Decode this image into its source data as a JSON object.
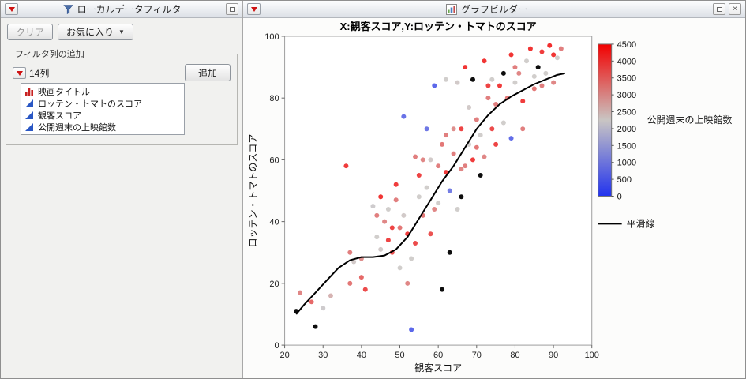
{
  "icons": {
    "close": "×",
    "caret_down": "▼"
  },
  "filter_panel": {
    "title": "ローカルデータフィルタ",
    "clear_label": "クリア",
    "favorites_label": "お気に入り",
    "group_label": "フィルタ列の追加",
    "columns_label": "14列",
    "add_label": "追加",
    "columns": [
      {
        "name": "映画タイトル",
        "icon": "bar-chart-icon",
        "type": "nominal"
      },
      {
        "name": "ロッテン・トマトのスコア",
        "icon": "continuous-icon",
        "type": "continuous"
      },
      {
        "name": "観客スコア",
        "icon": "continuous-icon",
        "type": "continuous"
      },
      {
        "name": "公開週末の上映館数",
        "icon": "continuous-icon",
        "type": "continuous"
      }
    ]
  },
  "graph_panel": {
    "title": "グラフビルダー"
  },
  "chart_data": {
    "type": "scatter",
    "title": "X:観客スコア,Y:ロッテン・トマトのスコア",
    "xlabel": "観客スコア",
    "ylabel": "ロッテン・トマトのスコア",
    "xlim": [
      20,
      100
    ],
    "ylim": [
      0,
      100
    ],
    "x_ticks": [
      20,
      30,
      40,
      50,
      60,
      70,
      80,
      90,
      100
    ],
    "y_ticks": [
      0,
      20,
      40,
      60,
      80,
      100
    ],
    "grid": false,
    "color_legend": {
      "title": "公開週末の上映館数",
      "min": 0,
      "max": 4500,
      "ticks": [
        4500,
        4000,
        3500,
        3000,
        2500,
        2000,
        1500,
        1000,
        500,
        0
      ],
      "low_color": "#2233ee",
      "mid_color": "#c9c5c3",
      "high_color": "#f20000"
    },
    "smoother": {
      "label": "平滑線",
      "color": "#000000",
      "points": [
        [
          23,
          10
        ],
        [
          25,
          13
        ],
        [
          28,
          17
        ],
        [
          31,
          21
        ],
        [
          34,
          25
        ],
        [
          37,
          27.5
        ],
        [
          40,
          28.5
        ],
        [
          43,
          28.5
        ],
        [
          46,
          29
        ],
        [
          49,
          31
        ],
        [
          52,
          35
        ],
        [
          55,
          41
        ],
        [
          58,
          47
        ],
        [
          61,
          53
        ],
        [
          64,
          58
        ],
        [
          67,
          64
        ],
        [
          70,
          70
        ],
        [
          73,
          74.5
        ],
        [
          76,
          78
        ],
        [
          79,
          80.5
        ],
        [
          82,
          82.5
        ],
        [
          85,
          84.5
        ],
        [
          88,
          86
        ],
        [
          91,
          87.5
        ],
        [
          93,
          88
        ]
      ]
    },
    "points": [
      [
        23,
        11,
        null
      ],
      [
        28,
        6,
        null
      ],
      [
        24,
        17,
        3200
      ],
      [
        27,
        14,
        3600
      ],
      [
        30,
        12,
        2200
      ],
      [
        32,
        16,
        2600
      ],
      [
        36,
        58,
        4200
      ],
      [
        37,
        30,
        3300
      ],
      [
        37,
        20,
        3400
      ],
      [
        38,
        27,
        2300
      ],
      [
        40,
        28,
        3100
      ],
      [
        40,
        22,
        3600
      ],
      [
        41,
        18,
        4000
      ],
      [
        43,
        45,
        2200
      ],
      [
        44,
        42,
        3300
      ],
      [
        44,
        35,
        2250
      ],
      [
        45,
        48,
        4300
      ],
      [
        45,
        31,
        2300
      ],
      [
        46,
        40,
        3200
      ],
      [
        47,
        34,
        4100
      ],
      [
        47,
        44,
        2250
      ],
      [
        48,
        38,
        4100
      ],
      [
        48,
        30,
        3900
      ],
      [
        49,
        52,
        4200
      ],
      [
        49,
        47,
        3300
      ],
      [
        50,
        25,
        2250
      ],
      [
        50,
        38,
        3400
      ],
      [
        51,
        74,
        600
      ],
      [
        51,
        42,
        2300
      ],
      [
        52,
        20,
        3200
      ],
      [
        52,
        36,
        4200
      ],
      [
        53,
        28,
        2250
      ],
      [
        53,
        5,
        400
      ],
      [
        54,
        61,
        3300
      ],
      [
        54,
        33,
        4000
      ],
      [
        55,
        48,
        2250
      ],
      [
        55,
        55,
        4100
      ],
      [
        56,
        42,
        3400
      ],
      [
        56,
        60,
        3200
      ],
      [
        57,
        70,
        700
      ],
      [
        57,
        51,
        2250
      ],
      [
        58,
        60,
        2300
      ],
      [
        58,
        36,
        3900
      ],
      [
        59,
        84,
        400
      ],
      [
        59,
        44,
        3200
      ],
      [
        60,
        58,
        3300
      ],
      [
        60,
        46,
        2250
      ],
      [
        61,
        18,
        null
      ],
      [
        61,
        65,
        3400
      ],
      [
        62,
        68,
        3300
      ],
      [
        62,
        56,
        4200
      ],
      [
        62,
        86,
        2250
      ],
      [
        63,
        30,
        null
      ],
      [
        63,
        50,
        800
      ],
      [
        64,
        62,
        3300
      ],
      [
        64,
        70,
        3100
      ],
      [
        65,
        44,
        2250
      ],
      [
        65,
        85,
        2300
      ],
      [
        66,
        70,
        4100
      ],
      [
        66,
        57,
        3200
      ],
      [
        66,
        48,
        null
      ],
      [
        67,
        58,
        3300
      ],
      [
        67,
        90,
        4300
      ],
      [
        68,
        65,
        2250
      ],
      [
        68,
        77,
        2300
      ],
      [
        69,
        86,
        null
      ],
      [
        69,
        60,
        4200
      ],
      [
        70,
        73,
        3300
      ],
      [
        70,
        64,
        3400
      ],
      [
        71,
        68,
        2250
      ],
      [
        71,
        55,
        null
      ],
      [
        72,
        92,
        4300
      ],
      [
        72,
        61,
        3200
      ],
      [
        73,
        80,
        3300
      ],
      [
        73,
        84,
        4100
      ],
      [
        74,
        86,
        2250
      ],
      [
        74,
        70,
        4000
      ],
      [
        75,
        78,
        3300
      ],
      [
        75,
        65,
        4100
      ],
      [
        76,
        84,
        4200
      ],
      [
        77,
        88,
        null
      ],
      [
        77,
        72,
        2250
      ],
      [
        78,
        80,
        3400
      ],
      [
        79,
        94,
        4300
      ],
      [
        79,
        67,
        500
      ],
      [
        80,
        85,
        2250
      ],
      [
        80,
        90,
        3300
      ],
      [
        81,
        88,
        3200
      ],
      [
        82,
        79,
        4200
      ],
      [
        82,
        70,
        3300
      ],
      [
        83,
        92,
        2250
      ],
      [
        84,
        96,
        4300
      ],
      [
        85,
        83,
        3400
      ],
      [
        85,
        87,
        2250
      ],
      [
        86,
        90,
        null
      ],
      [
        87,
        95,
        4200
      ],
      [
        87,
        84,
        3300
      ],
      [
        88,
        88,
        2250
      ],
      [
        89,
        97,
        4400
      ],
      [
        90,
        85,
        3200
      ],
      [
        90,
        94,
        4300
      ],
      [
        91,
        93,
        2250
      ],
      [
        92,
        96,
        3300
      ]
    ]
  }
}
